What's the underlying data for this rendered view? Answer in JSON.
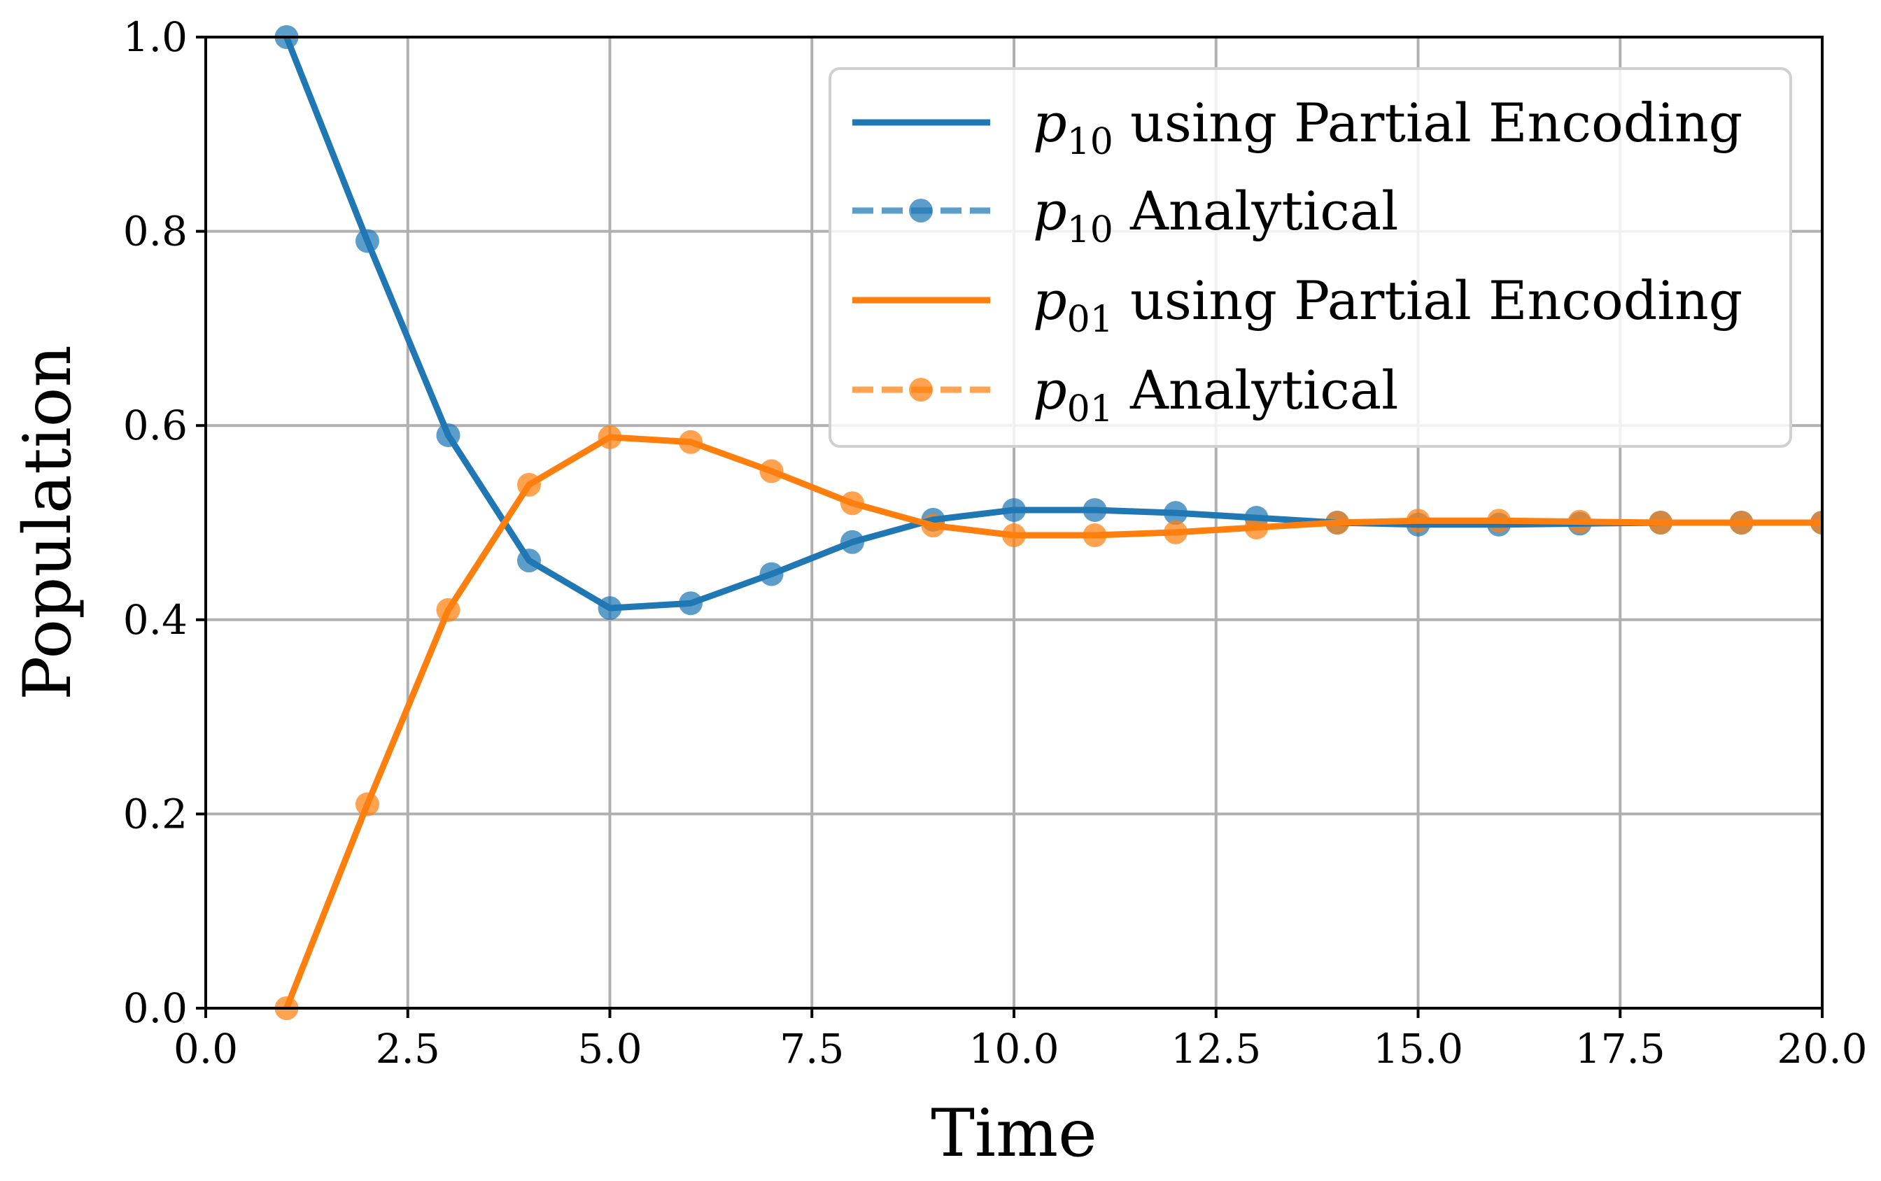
{
  "chart_data": {
    "type": "line",
    "xlabel": "Time",
    "ylabel": "Population",
    "xlim": [
      0,
      20
    ],
    "ylim": [
      0,
      1
    ],
    "xticks": [
      0,
      2.5,
      5,
      7.5,
      10,
      12.5,
      15,
      17.5,
      20
    ],
    "xtick_labels": [
      "0.0",
      "2.5",
      "5.0",
      "7.5",
      "10.0",
      "12.5",
      "15.0",
      "17.5",
      "20.0"
    ],
    "yticks": [
      0,
      0.2,
      0.4,
      0.6,
      0.8,
      1.0
    ],
    "ytick_labels": [
      "0.0",
      "0.2",
      "0.4",
      "0.6",
      "0.8",
      "1.0"
    ],
    "grid": true,
    "legend_position": "top-right",
    "x": [
      1,
      2,
      3,
      4,
      5,
      6,
      7,
      8,
      9,
      10,
      11,
      12,
      13,
      14,
      15,
      16,
      17,
      18,
      19,
      20
    ],
    "series": [
      {
        "name_main": "p",
        "name_sub": "10",
        "name_rest": " using Partial Encoding",
        "style": "solid",
        "color": "#1f77b4",
        "values": [
          1.0,
          0.79,
          0.59,
          0.461,
          0.412,
          0.417,
          0.447,
          0.48,
          0.503,
          0.513,
          0.513,
          0.51,
          0.505,
          0.5,
          0.498,
          0.498,
          0.499,
          0.5,
          0.5,
          0.5
        ]
      },
      {
        "name_main": "p",
        "name_sub": "10",
        "name_rest": " Analytical",
        "style": "dashed-markers",
        "color": "#1f77b4",
        "values": [
          1.0,
          0.79,
          0.59,
          0.461,
          0.412,
          0.417,
          0.447,
          0.48,
          0.503,
          0.513,
          0.513,
          0.51,
          0.505,
          0.5,
          0.498,
          0.498,
          0.499,
          0.5,
          0.5,
          0.5
        ]
      },
      {
        "name_main": "p",
        "name_sub": "01",
        "name_rest": " using Partial Encoding",
        "style": "solid",
        "color": "#ff7f0e",
        "values": [
          0.0,
          0.21,
          0.41,
          0.539,
          0.588,
          0.583,
          0.553,
          0.52,
          0.497,
          0.487,
          0.487,
          0.49,
          0.495,
          0.5,
          0.502,
          0.502,
          0.501,
          0.5,
          0.5,
          0.5
        ]
      },
      {
        "name_main": "p",
        "name_sub": "01",
        "name_rest": " Analytical",
        "style": "dashed-markers",
        "color": "#ff7f0e",
        "values": [
          0.0,
          0.21,
          0.41,
          0.539,
          0.588,
          0.583,
          0.553,
          0.52,
          0.497,
          0.487,
          0.487,
          0.49,
          0.495,
          0.5,
          0.502,
          0.502,
          0.501,
          0.5,
          0.5,
          0.5
        ]
      }
    ]
  }
}
